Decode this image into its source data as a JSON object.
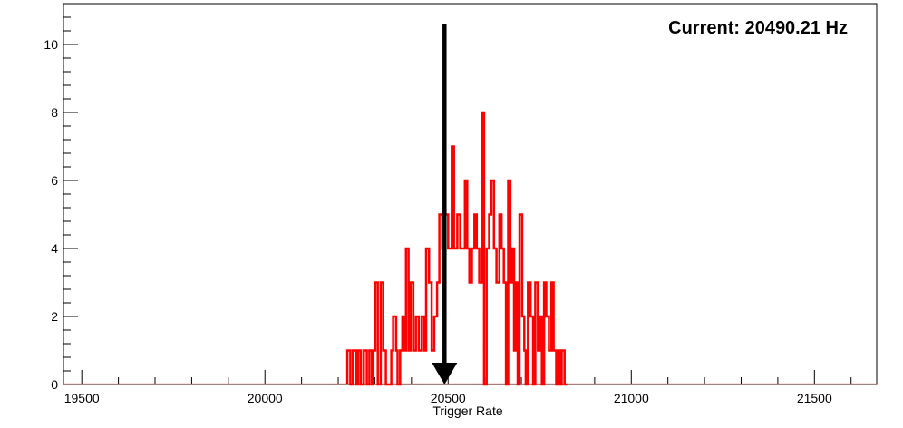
{
  "annotation": {
    "prefix": "Current:",
    "value": "20490.21",
    "unit": "Hz",
    "text": "Current: 20490.21 Hz"
  },
  "chart_data": {
    "type": "histogram",
    "xlabel": "Trigger Rate",
    "ylabel": "",
    "xlim": [
      19450,
      21670
    ],
    "ylim": [
      0,
      11.2
    ],
    "x_ticks": [
      19500,
      20000,
      20500,
      21000,
      21500
    ],
    "y_ticks": [
      0,
      2,
      4,
      6,
      8,
      10
    ],
    "grid": false,
    "line_color": "#ff0000",
    "marker": {
      "x": 20490.21,
      "y_top": 10.6,
      "color": "#000000",
      "shape": "down-arrow"
    },
    "bins": [
      [
        20225,
        1
      ],
      [
        20233,
        0
      ],
      [
        20240,
        1
      ],
      [
        20250,
        0
      ],
      [
        20255,
        1
      ],
      [
        20262,
        0
      ],
      [
        20270,
        1
      ],
      [
        20278,
        0
      ],
      [
        20285,
        1
      ],
      [
        20292,
        0
      ],
      [
        20296,
        1
      ],
      [
        20301,
        3
      ],
      [
        20308,
        0
      ],
      [
        20316,
        3
      ],
      [
        20323,
        1
      ],
      [
        20330,
        0
      ],
      [
        20345,
        1
      ],
      [
        20350,
        2
      ],
      [
        20358,
        1
      ],
      [
        20362,
        0
      ],
      [
        20369,
        1
      ],
      [
        20375,
        2
      ],
      [
        20380,
        1
      ],
      [
        20385,
        4
      ],
      [
        20392,
        1
      ],
      [
        20398,
        3
      ],
      [
        20405,
        1
      ],
      [
        20412,
        2
      ],
      [
        20420,
        1
      ],
      [
        20428,
        2
      ],
      [
        20435,
        1
      ],
      [
        20440,
        4
      ],
      [
        20448,
        3
      ],
      [
        20455,
        1
      ],
      [
        20462,
        2
      ],
      [
        20470,
        3
      ],
      [
        20476,
        5
      ],
      [
        20484,
        4
      ],
      [
        20492,
        5
      ],
      [
        20500,
        4
      ],
      [
        20510,
        7
      ],
      [
        20516,
        4
      ],
      [
        20525,
        5
      ],
      [
        20533,
        4
      ],
      [
        20546,
        6
      ],
      [
        20552,
        4
      ],
      [
        20558,
        3
      ],
      [
        20565,
        4
      ],
      [
        20572,
        5
      ],
      [
        20578,
        4
      ],
      [
        20585,
        3
      ],
      [
        20592,
        8
      ],
      [
        20598,
        0
      ],
      [
        20605,
        4
      ],
      [
        20612,
        5
      ],
      [
        20618,
        6
      ],
      [
        20625,
        4
      ],
      [
        20632,
        3
      ],
      [
        20640,
        5
      ],
      [
        20646,
        4
      ],
      [
        20652,
        3
      ],
      [
        20658,
        0
      ],
      [
        20664,
        6
      ],
      [
        20670,
        3
      ],
      [
        20676,
        4
      ],
      [
        20680,
        1
      ],
      [
        20685,
        3
      ],
      [
        20690,
        0
      ],
      [
        20695,
        5
      ],
      [
        20702,
        2
      ],
      [
        20708,
        1
      ],
      [
        20712,
        0
      ],
      [
        20718,
        3
      ],
      [
        20725,
        2
      ],
      [
        20732,
        0
      ],
      [
        20738,
        3
      ],
      [
        20745,
        1
      ],
      [
        20750,
        2
      ],
      [
        20756,
        0
      ],
      [
        20762,
        3
      ],
      [
        20768,
        2
      ],
      [
        20775,
        1
      ],
      [
        20782,
        3
      ],
      [
        20788,
        1
      ],
      [
        20795,
        0
      ],
      [
        20800,
        1
      ],
      [
        20806,
        0
      ],
      [
        20810,
        1
      ],
      [
        20818,
        0
      ]
    ],
    "bins_end": 20825
  }
}
